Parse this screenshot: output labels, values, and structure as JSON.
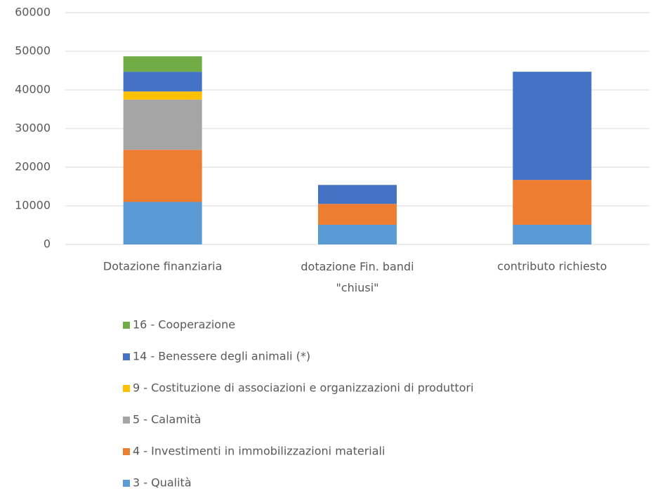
{
  "chart_data": {
    "type": "stacked_bar",
    "categories": [
      "Dotazione finanziaria",
      "dotazione Fin. bandi \"chiusi\"",
      "contributo richiesto"
    ],
    "series": [
      {
        "name": "3 - Qualità",
        "color": "#5b9bd5",
        "values": [
          11000,
          5100,
          5100
        ]
      },
      {
        "name": "4 - Investimenti in immobilizzazioni materiali",
        "color": "#ed7d31",
        "values": [
          13500,
          5400,
          11600
        ]
      },
      {
        "name": "5 - Calamità",
        "color": "#a5a5a5",
        "values": [
          13000,
          0,
          0
        ]
      },
      {
        "name": "9 - Costituzione di associazioni e organizzazioni di produttori",
        "color": "#ffc000",
        "values": [
          2100,
          0,
          0
        ]
      },
      {
        "name": "14 - Benessere degli animali (*)",
        "color": "#4472c4",
        "values": [
          5100,
          4900,
          28000
        ]
      },
      {
        "name": "16 - Cooperazione",
        "color": "#70ad47",
        "values": [
          4000,
          0,
          0
        ]
      }
    ],
    "ylim": [
      0,
      60000
    ],
    "yticks": [
      0,
      10000,
      20000,
      30000,
      40000,
      50000,
      60000
    ],
    "grid": true,
    "legend": "bottom"
  }
}
